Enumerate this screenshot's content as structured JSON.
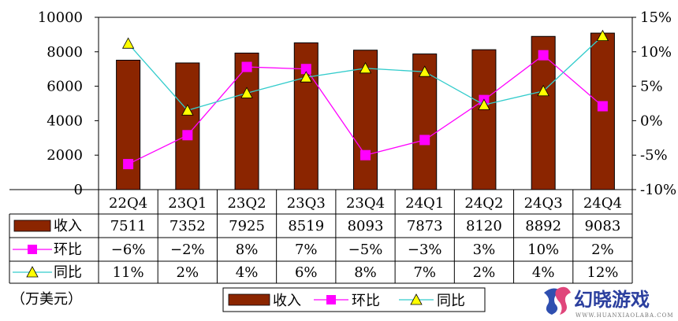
{
  "chart_data": {
    "type": "bar",
    "categories": [
      "22Q4",
      "23Q1",
      "23Q2",
      "23Q3",
      "23Q4",
      "24Q1",
      "24Q2",
      "24Q3",
      "24Q4"
    ],
    "series": [
      {
        "name": "收入",
        "type": "bar",
        "axis": "left",
        "color": "#8B2500",
        "values": [
          7511,
          7352,
          7925,
          8519,
          8093,
          7873,
          8120,
          8892,
          9083
        ],
        "labels": [
          "7511",
          "7352",
          "7925",
          "8519",
          "8093",
          "7873",
          "8120",
          "8892",
          "9083"
        ]
      },
      {
        "name": "环比",
        "type": "line",
        "axis": "right",
        "color": "#FF00FF",
        "marker": "square",
        "values": [
          -6.3,
          -2.1,
          7.8,
          7.5,
          -5.0,
          -2.8,
          3.0,
          9.5,
          2.1
        ],
        "labels": [
          "−6%",
          "−2%",
          "8%",
          "7%",
          "−5%",
          "−3%",
          "3%",
          "10%",
          "2%"
        ]
      },
      {
        "name": "同比",
        "type": "line",
        "axis": "right",
        "color": "#33CCCC",
        "marker": "triangle",
        "marker_fill": "#FFFF00",
        "values": [
          11.2,
          1.5,
          4.0,
          6.3,
          7.6,
          7.1,
          2.3,
          4.3,
          12.3
        ],
        "labels": [
          "11%",
          "2%",
          "4%",
          "6%",
          "8%",
          "7%",
          "2%",
          "4%",
          "12%"
        ]
      }
    ],
    "y_left": {
      "min": 0,
      "max": 10000,
      "ticks": [
        "0",
        "2000",
        "4000",
        "6000",
        "8000",
        "10000"
      ]
    },
    "y_right": {
      "min": -10,
      "max": 15,
      "ticks": [
        "-10%",
        "-5%",
        "0%",
        "5%",
        "10%",
        "15%"
      ]
    },
    "grid": false,
    "legend_position": "bottom",
    "unit_note": "（万美元）"
  },
  "watermark": {
    "brand": "幻晓游戏",
    "url": "WWW.HUANXIAOLABA.COM"
  }
}
